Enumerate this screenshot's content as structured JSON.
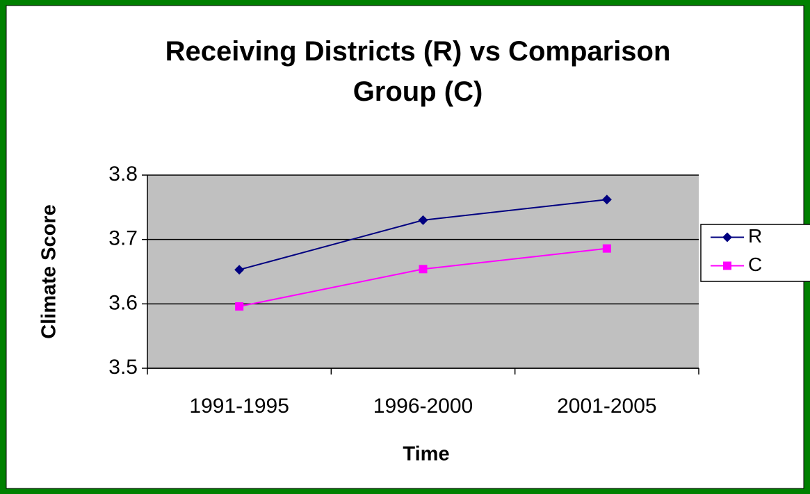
{
  "chart_data": {
    "type": "line",
    "title": "Receiving Districts (R) vs Comparison Group (C)",
    "x_label": "Time",
    "y_label": "Climate Score",
    "categories": [
      "1991-1995",
      "1996-2000",
      "2001-2005"
    ],
    "series": [
      {
        "name": "R",
        "color": "#000080",
        "marker": "diamond",
        "values": [
          3.653,
          3.73,
          3.762
        ]
      },
      {
        "name": "C",
        "color": "#ff00ff",
        "marker": "square",
        "values": [
          3.596,
          3.654,
          3.686
        ]
      }
    ],
    "ylim": [
      3.5,
      3.8
    ],
    "yticks": [
      {
        "value": 3.5,
        "label": "3.5"
      },
      {
        "value": 3.6,
        "label": "3.6"
      },
      {
        "value": 3.7,
        "label": "3.7"
      },
      {
        "value": 3.8,
        "label": "3.8"
      }
    ],
    "grid": true,
    "legend": "right"
  }
}
